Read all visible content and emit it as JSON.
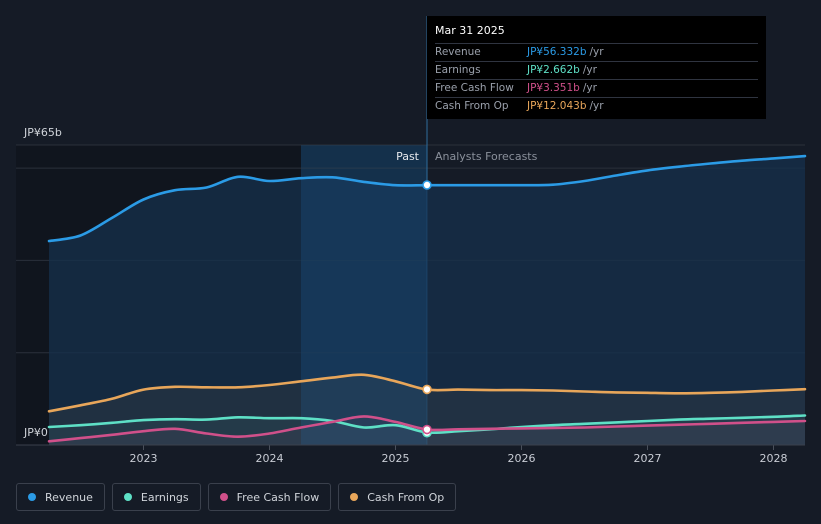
{
  "colors": {
    "background": "#151b26",
    "revenue": "#2b9be6",
    "earnings": "#5ee0c6",
    "free_cash_flow": "#d0508a",
    "cash_from_op": "#e8a65a",
    "past_highlight": "#1c4a73"
  },
  "tooltip": {
    "date": "Mar 31 2025",
    "rows": [
      {
        "label": "Revenue",
        "value": "JP¥56.332b",
        "unit": "/yr",
        "color": "#2b9be6"
      },
      {
        "label": "Earnings",
        "value": "JP¥2.662b",
        "unit": "/yr",
        "color": "#5ee0c6"
      },
      {
        "label": "Free Cash Flow",
        "value": "JP¥3.351b",
        "unit": "/yr",
        "color": "#d0508a"
      },
      {
        "label": "Cash From Op",
        "value": "JP¥12.043b",
        "unit": "/yr",
        "color": "#e8a65a"
      }
    ]
  },
  "legend": [
    {
      "label": "Revenue",
      "color": "#2b9be6"
    },
    {
      "label": "Earnings",
      "color": "#5ee0c6"
    },
    {
      "label": "Free Cash Flow",
      "color": "#d0508a"
    },
    {
      "label": "Cash From Op",
      "color": "#e8a65a"
    }
  ],
  "chart_data": {
    "type": "line",
    "title": "",
    "xlabel": "",
    "ylabel": "",
    "ylim": [
      0,
      65
    ],
    "xlim": [
      2022.25,
      2028.25
    ],
    "y_top_label": "JP¥65b",
    "y_bottom_label": "JP¥0",
    "past_label": "Past",
    "forecast_label": "Analysts Forecasts",
    "divider_x": 2025.25,
    "highlight_start_x": 2024.25,
    "x_ticks": [
      {
        "value": 2023,
        "label": "2023"
      },
      {
        "value": 2024,
        "label": "2024"
      },
      {
        "value": 2025,
        "label": "2025"
      },
      {
        "value": 2026,
        "label": "2026"
      },
      {
        "value": 2027,
        "label": "2027"
      },
      {
        "value": 2028,
        "label": "2028"
      }
    ],
    "series": [
      {
        "name": "Revenue",
        "key": "revenue",
        "color": "#2b9be6",
        "fill": true,
        "marker_value": 56.332,
        "points": [
          [
            2022.25,
            44.2
          ],
          [
            2022.5,
            45.4
          ],
          [
            2022.75,
            49.2
          ],
          [
            2023.0,
            53.2
          ],
          [
            2023.25,
            55.2
          ],
          [
            2023.5,
            55.8
          ],
          [
            2023.75,
            58.1
          ],
          [
            2024.0,
            57.2
          ],
          [
            2024.25,
            57.8
          ],
          [
            2024.5,
            58.0
          ],
          [
            2024.75,
            57.0
          ],
          [
            2025.0,
            56.3
          ],
          [
            2025.25,
            56.3
          ],
          [
            2025.5,
            56.3
          ],
          [
            2025.75,
            56.3
          ],
          [
            2026.0,
            56.3
          ],
          [
            2026.25,
            56.4
          ],
          [
            2026.5,
            57.2
          ],
          [
            2026.75,
            58.4
          ],
          [
            2027.0,
            59.5
          ],
          [
            2027.25,
            60.3
          ],
          [
            2027.5,
            61.0
          ],
          [
            2027.75,
            61.6
          ],
          [
            2028.0,
            62.1
          ],
          [
            2028.25,
            62.6
          ]
        ]
      },
      {
        "name": "Cash From Op",
        "key": "cash_from_op",
        "color": "#e8a65a",
        "fill": false,
        "marker_value": 12.043,
        "points": [
          [
            2022.25,
            7.3
          ],
          [
            2022.5,
            8.6
          ],
          [
            2022.75,
            10.0
          ],
          [
            2023.0,
            12.0
          ],
          [
            2023.25,
            12.6
          ],
          [
            2023.5,
            12.5
          ],
          [
            2023.75,
            12.5
          ],
          [
            2024.0,
            13.0
          ],
          [
            2024.25,
            13.8
          ],
          [
            2024.5,
            14.6
          ],
          [
            2024.75,
            15.2
          ],
          [
            2025.0,
            13.8
          ],
          [
            2025.25,
            12.0
          ],
          [
            2025.5,
            12.0
          ],
          [
            2025.75,
            11.9
          ],
          [
            2026.0,
            11.9
          ],
          [
            2026.25,
            11.8
          ],
          [
            2026.5,
            11.6
          ],
          [
            2026.75,
            11.4
          ],
          [
            2027.0,
            11.3
          ],
          [
            2027.25,
            11.2
          ],
          [
            2027.5,
            11.3
          ],
          [
            2027.75,
            11.5
          ],
          [
            2028.0,
            11.8
          ],
          [
            2028.25,
            12.1
          ]
        ]
      },
      {
        "name": "Earnings",
        "key": "earnings",
        "color": "#5ee0c6",
        "fill": false,
        "marker_value": 2.662,
        "points": [
          [
            2022.25,
            3.9
          ],
          [
            2022.5,
            4.3
          ],
          [
            2022.75,
            4.8
          ],
          [
            2023.0,
            5.4
          ],
          [
            2023.25,
            5.6
          ],
          [
            2023.5,
            5.5
          ],
          [
            2023.75,
            6.0
          ],
          [
            2024.0,
            5.8
          ],
          [
            2024.25,
            5.8
          ],
          [
            2024.5,
            5.2
          ],
          [
            2024.75,
            3.8
          ],
          [
            2025.0,
            4.3
          ],
          [
            2025.25,
            2.7
          ],
          [
            2025.5,
            3.0
          ],
          [
            2025.75,
            3.4
          ],
          [
            2026.0,
            3.9
          ],
          [
            2026.25,
            4.3
          ],
          [
            2026.5,
            4.6
          ],
          [
            2026.75,
            4.9
          ],
          [
            2027.0,
            5.2
          ],
          [
            2027.25,
            5.5
          ],
          [
            2027.5,
            5.7
          ],
          [
            2027.75,
            5.9
          ],
          [
            2028.0,
            6.1
          ],
          [
            2028.25,
            6.4
          ]
        ]
      },
      {
        "name": "Free Cash Flow",
        "key": "free_cash_flow",
        "color": "#d0508a",
        "fill": false,
        "marker_value": 3.351,
        "points": [
          [
            2022.25,
            0.8
          ],
          [
            2022.5,
            1.5
          ],
          [
            2022.75,
            2.2
          ],
          [
            2023.0,
            3.0
          ],
          [
            2023.25,
            3.5
          ],
          [
            2023.5,
            2.5
          ],
          [
            2023.75,
            1.8
          ],
          [
            2024.0,
            2.5
          ],
          [
            2024.25,
            3.8
          ],
          [
            2024.5,
            5.0
          ],
          [
            2024.75,
            6.2
          ],
          [
            2025.0,
            5.0
          ],
          [
            2025.25,
            3.35
          ],
          [
            2025.5,
            3.4
          ],
          [
            2025.75,
            3.5
          ],
          [
            2026.0,
            3.6
          ],
          [
            2026.25,
            3.7
          ],
          [
            2026.5,
            3.8
          ],
          [
            2026.75,
            4.0
          ],
          [
            2027.0,
            4.2
          ],
          [
            2027.25,
            4.4
          ],
          [
            2027.5,
            4.6
          ],
          [
            2027.75,
            4.8
          ],
          [
            2028.0,
            5.0
          ],
          [
            2028.25,
            5.2
          ]
        ]
      }
    ]
  }
}
